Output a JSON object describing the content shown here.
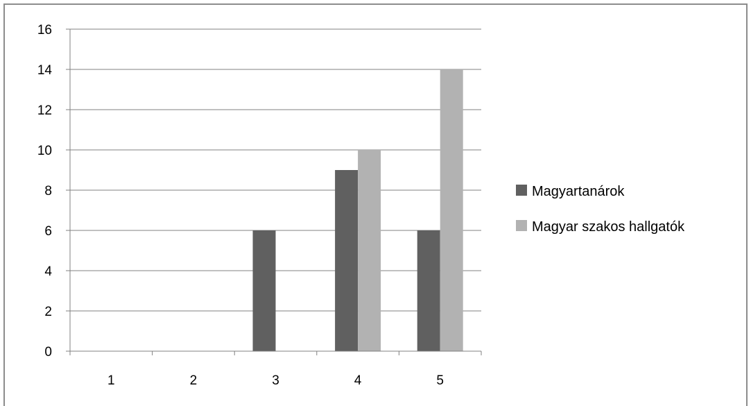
{
  "chart_data": {
    "type": "bar",
    "categories": [
      "1",
      "2",
      "3",
      "4",
      "5"
    ],
    "series": [
      {
        "name": "Magyartanárok",
        "values": [
          0,
          0,
          6,
          9,
          6
        ],
        "color": "#606060"
      },
      {
        "name": "Magyar szakos hallgatók",
        "values": [
          0,
          0,
          0,
          10,
          14
        ],
        "color": "#b2b2b2"
      }
    ],
    "ylim": [
      0,
      16
    ],
    "yticks": [
      0,
      2,
      4,
      6,
      8,
      10,
      12,
      14,
      16
    ],
    "grid": true,
    "legend_position": "right",
    "gridline_color": "#808080",
    "axis_color": "#808080",
    "frame_color": "#8c8c8c"
  }
}
